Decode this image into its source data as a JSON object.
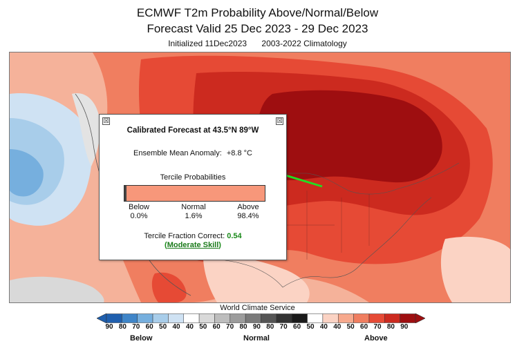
{
  "header": {
    "title_line1": "ECMWF T2m Probability Above/Normal/Below",
    "title_line2": "Forecast Valid 25 Dec 2023 - 29 Dec 2023",
    "initialized": "Initialized 11Dec2023",
    "climatology": "2003-2022 Climatology"
  },
  "popup": {
    "close_glyph": "☒",
    "title": "Calibrated Forecast at 43.5°N 89°W",
    "anomaly_label": "Ensemble Mean Anomaly:",
    "anomaly_value": "+8.8 °C",
    "tercile_heading": "Tercile Probabilities",
    "below_label": "Below",
    "below_value": "0.0%",
    "normal_label": "Normal",
    "normal_value": "1.6%",
    "above_label": "Above",
    "above_value": "98.4%",
    "probabilities": {
      "below": 0.0,
      "normal": 1.6,
      "above": 98.4
    },
    "tfc_label": "Tercile Fraction Correct:",
    "tfc_value": "0.54",
    "skill_open": "(",
    "skill_label": "Moderate Skill",
    "skill_close": ")"
  },
  "legend": {
    "source": "World Climate Service",
    "tick_labels": [
      "90",
      "80",
      "70",
      "60",
      "50",
      "40",
      "40",
      "50",
      "60",
      "70",
      "80",
      "90",
      "80",
      "70",
      "60",
      "50",
      "40",
      "40",
      "50",
      "60",
      "70",
      "80",
      "90"
    ],
    "categories": {
      "below": "Below",
      "normal": "Normal",
      "above": "Above"
    },
    "colors": {
      "below": [
        "#1f5fae",
        "#3f85c8",
        "#76afde",
        "#a8cdea",
        "#cfe2f3"
      ],
      "neutral": "#ffffff",
      "normal": [
        "#d9d9d9",
        "#bdbdbd",
        "#9c9c9c",
        "#7a7a7a",
        "#555555",
        "#333333",
        "#1a1a1a"
      ],
      "above": [
        "#fbd3c4",
        "#f7a98d",
        "#f07e60",
        "#e64a35",
        "#cc2a1f",
        "#9e0e10"
      ]
    }
  }
}
